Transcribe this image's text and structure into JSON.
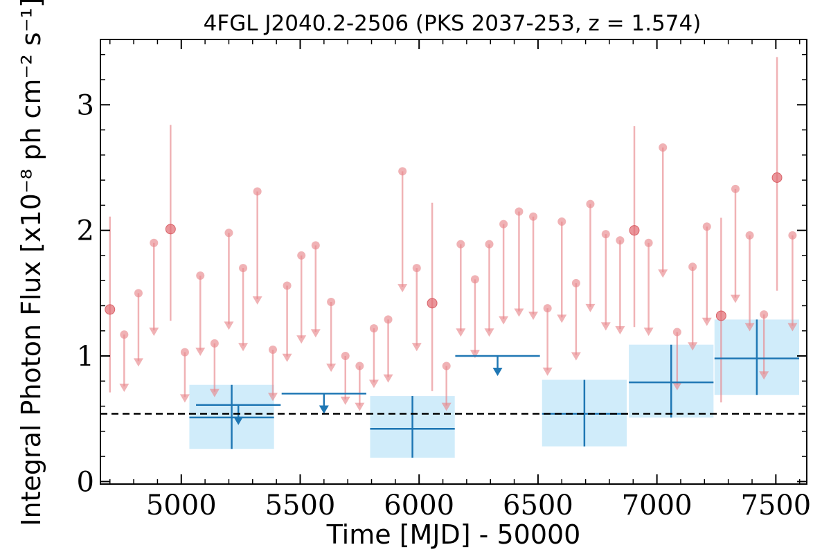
{
  "chart_data": {
    "type": "scatter",
    "title": "4FGL J2040.2-2506 (PKS 2037-253, z = 1.574)",
    "xlabel": "Time [MJD] - 50000",
    "ylabel": "Integral Photon Flux [x10⁻⁸ ph cm⁻² s⁻¹]",
    "xlim": [
      4660,
      7630
    ],
    "ylim": [
      -0.02,
      3.52
    ],
    "x_ticks": [
      5000,
      5500,
      6000,
      6500,
      7000,
      7500
    ],
    "x_tick_labels": [
      "5000",
      "5500",
      "6000",
      "6500",
      "7000",
      "7500"
    ],
    "y_ticks": [
      0,
      1,
      2,
      3
    ],
    "y_tick_labels": [
      "0",
      "1",
      "2",
      "3"
    ],
    "average_flux": 0.54,
    "colors": {
      "short_bins": "#e8898d",
      "long_bins": "#1f77b4",
      "long_bin_band": "#d0ecfa",
      "average_line": "#000000"
    },
    "series": [
      {
        "bin": "short",
        "detections": [
          {
            "x": 4700,
            "y": 1.37,
            "yerr_low": 0.66,
            "yerr_high": 0.74
          },
          {
            "x": 4955,
            "y": 2.01,
            "yerr_low": 0.73,
            "yerr_high": 0.83
          },
          {
            "x": 6055,
            "y": 1.42,
            "yerr_low": 0.7,
            "yerr_high": 0.8
          },
          {
            "x": 6905,
            "y": 2.0,
            "yerr_low": 0.77,
            "yerr_high": 0.83
          },
          {
            "x": 7270,
            "y": 1.32,
            "yerr_low": 0.69,
            "yerr_high": 0.78
          },
          {
            "x": 7505,
            "y": 2.42,
            "yerr_low": 0.9,
            "yerr_high": 0.96
          }
        ],
        "upper_limits": [
          {
            "x": 4760,
            "y": 1.17
          },
          {
            "x": 4820,
            "y": 1.5
          },
          {
            "x": 4885,
            "y": 1.9
          },
          {
            "x": 5015,
            "y": 1.03
          },
          {
            "x": 5080,
            "y": 1.64
          },
          {
            "x": 5140,
            "y": 1.1
          },
          {
            "x": 5200,
            "y": 1.98
          },
          {
            "x": 5260,
            "y": 1.7
          },
          {
            "x": 5320,
            "y": 2.31
          },
          {
            "x": 5385,
            "y": 1.05
          },
          {
            "x": 5445,
            "y": 1.56
          },
          {
            "x": 5505,
            "y": 1.8
          },
          {
            "x": 5565,
            "y": 1.88
          },
          {
            "x": 5630,
            "y": 1.43
          },
          {
            "x": 5690,
            "y": 1.0
          },
          {
            "x": 5750,
            "y": 0.92
          },
          {
            "x": 5810,
            "y": 1.22
          },
          {
            "x": 5870,
            "y": 1.29
          },
          {
            "x": 5930,
            "y": 2.47
          },
          {
            "x": 5990,
            "y": 1.7
          },
          {
            "x": 6115,
            "y": 0.92
          },
          {
            "x": 6175,
            "y": 1.89
          },
          {
            "x": 6235,
            "y": 1.61
          },
          {
            "x": 6295,
            "y": 1.89
          },
          {
            "x": 6355,
            "y": 2.05
          },
          {
            "x": 6420,
            "y": 2.15
          },
          {
            "x": 6480,
            "y": 2.11
          },
          {
            "x": 6540,
            "y": 1.38
          },
          {
            "x": 6600,
            "y": 2.07
          },
          {
            "x": 6660,
            "y": 1.58
          },
          {
            "x": 6720,
            "y": 2.21
          },
          {
            "x": 6785,
            "y": 1.97
          },
          {
            "x": 6845,
            "y": 1.92
          },
          {
            "x": 6965,
            "y": 1.9
          },
          {
            "x": 7025,
            "y": 2.66
          },
          {
            "x": 7085,
            "y": 1.19
          },
          {
            "x": 7150,
            "y": 1.71
          },
          {
            "x": 7210,
            "y": 2.03
          },
          {
            "x": 7330,
            "y": 2.33
          },
          {
            "x": 7390,
            "y": 1.96
          },
          {
            "x": 7450,
            "y": 1.33
          },
          {
            "x": 7570,
            "y": 1.96
          }
        ]
      },
      {
        "bin": "long",
        "detections": [
          {
            "x": 5212,
            "xerr": 178,
            "y": 0.51,
            "yerr_low": 0.25,
            "yerr_high": 0.26
          },
          {
            "x": 5972,
            "xerr": 178,
            "y": 0.42,
            "yerr_low": 0.23,
            "yerr_high": 0.26
          },
          {
            "x": 6695,
            "xerr": 178,
            "y": 0.54,
            "yerr_low": 0.26,
            "yerr_high": 0.27
          },
          {
            "x": 7060,
            "xerr": 178,
            "y": 0.79,
            "yerr_low": 0.28,
            "yerr_high": 0.3
          },
          {
            "x": 7420,
            "xerr": 178,
            "y": 0.98,
            "yerr_low": 0.29,
            "yerr_high": 0.31
          }
        ],
        "upper_limits": [
          {
            "x": 5240,
            "xerr": 178,
            "y": 0.61
          },
          {
            "x": 5600,
            "xerr": 178,
            "y": 0.7
          },
          {
            "x": 6330,
            "xerr": 178,
            "y": 1.0
          }
        ]
      }
    ]
  }
}
